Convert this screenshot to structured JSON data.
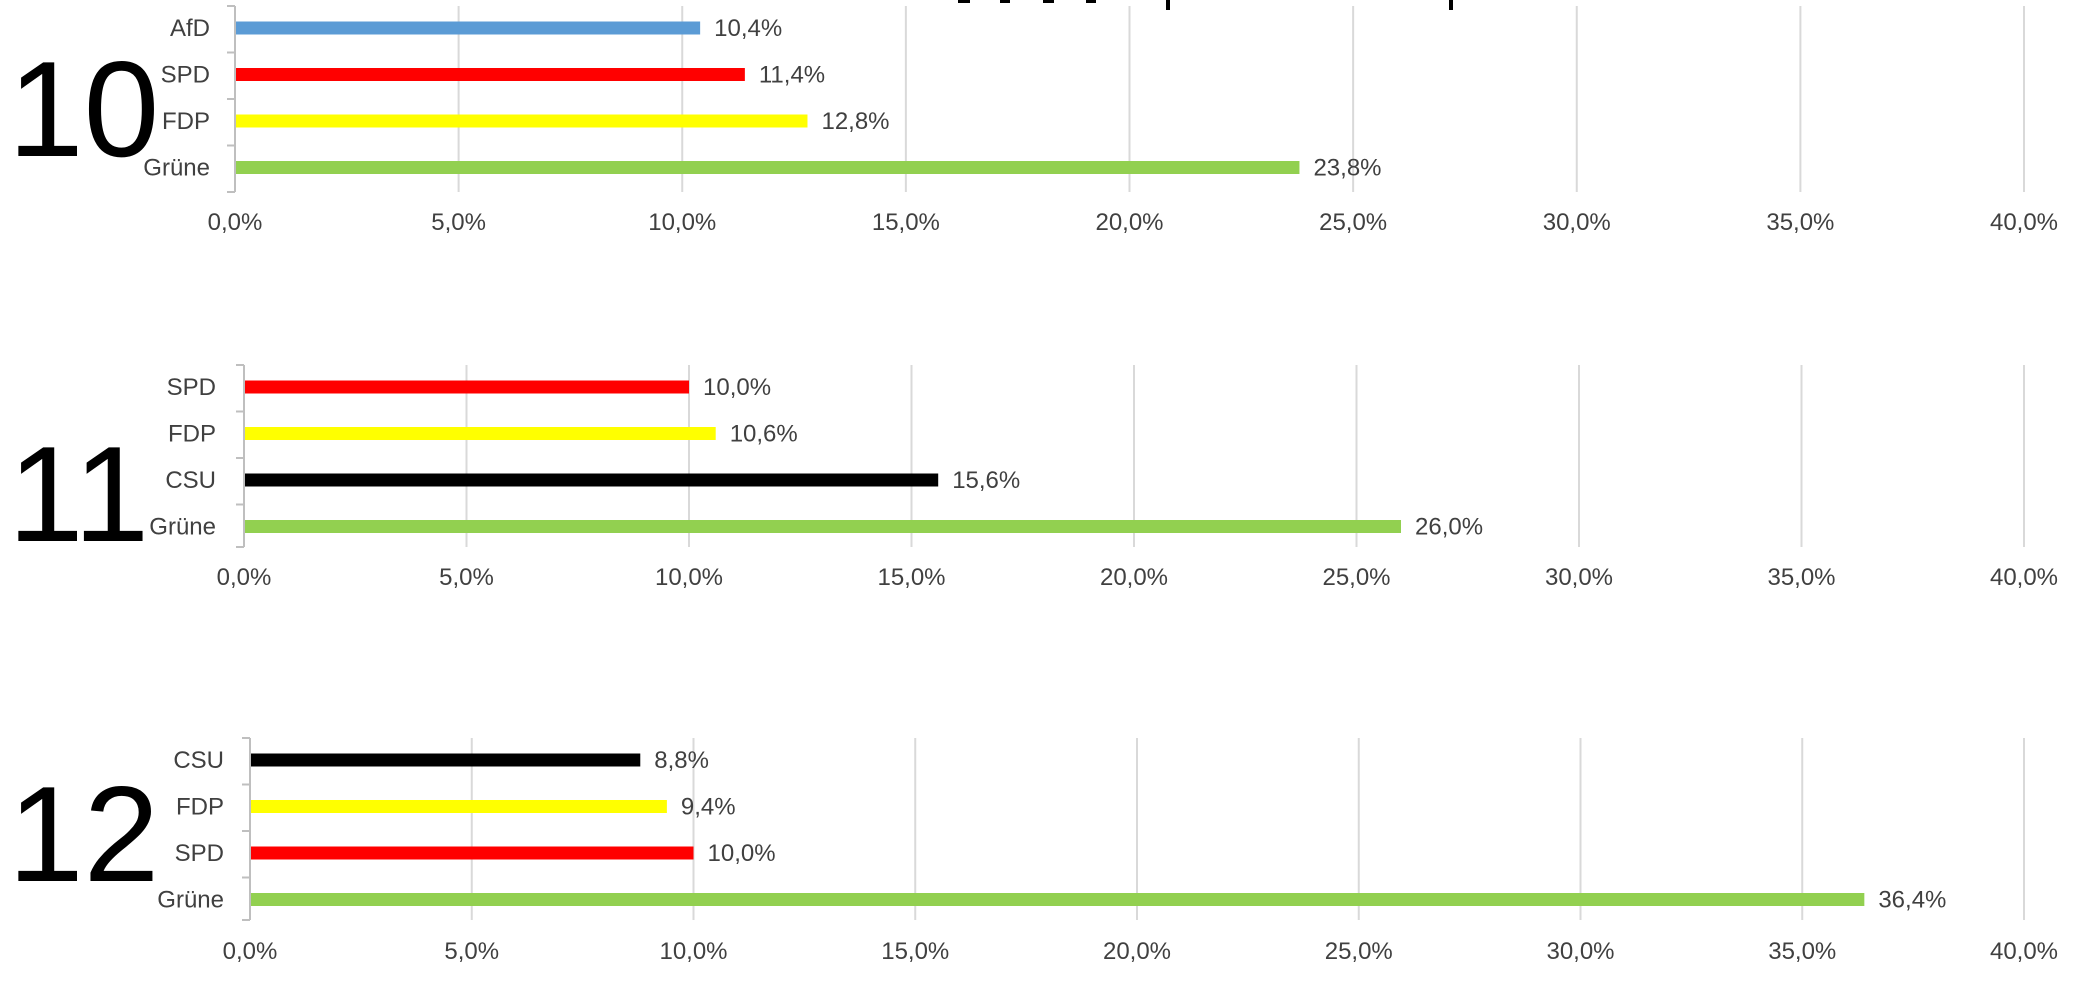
{
  "chart_data": [
    {
      "type": "bar",
      "orientation": "horizontal",
      "panel_label": "10",
      "categories": [
        "AfD",
        "SPD",
        "FDP",
        "Grüne"
      ],
      "values": [
        10.4,
        11.4,
        12.8,
        23.8
      ],
      "value_labels": [
        "10,4%",
        "11,4%",
        "12,8%",
        "23,8%"
      ],
      "colors": [
        "#5b9bd5",
        "#ff0000",
        "#ffff00",
        "#92d050"
      ],
      "xlim": [
        0,
        40
      ],
      "x_ticks": [
        "0,0%",
        "5,0%",
        "10,0%",
        "15,0%",
        "20,0%",
        "25,0%",
        "30,0%",
        "35,0%",
        "40,0%"
      ],
      "grid": true,
      "legend": "none"
    },
    {
      "type": "bar",
      "orientation": "horizontal",
      "panel_label": "11",
      "categories": [
        "SPD",
        "FDP",
        "CSU",
        "Grüne"
      ],
      "values": [
        10.0,
        10.6,
        15.6,
        26.0
      ],
      "value_labels": [
        "10,0%",
        "10,6%",
        "15,6%",
        "26,0%"
      ],
      "colors": [
        "#ff0000",
        "#ffff00",
        "#000000",
        "#92d050"
      ],
      "xlim": [
        0,
        40
      ],
      "x_ticks": [
        "0,0%",
        "5,0%",
        "10,0%",
        "15,0%",
        "20,0%",
        "25,0%",
        "30,0%",
        "35,0%",
        "40,0%"
      ],
      "grid": true,
      "legend": "none"
    },
    {
      "type": "bar",
      "orientation": "horizontal",
      "panel_label": "12",
      "categories": [
        "CSU",
        "FDP",
        "SPD",
        "Grüne"
      ],
      "values": [
        8.8,
        9.4,
        10.0,
        36.4
      ],
      "value_labels": [
        "8,8%",
        "9,4%",
        "10,0%",
        "36,4%"
      ],
      "colors": [
        "#000000",
        "#ffff00",
        "#ff0000",
        "#92d050"
      ],
      "xlim": [
        0,
        40
      ],
      "x_ticks": [
        "0,0%",
        "5,0%",
        "10,0%",
        "15,0%",
        "20,0%",
        "25,0%",
        "30,0%",
        "35,0%",
        "40,0%"
      ],
      "grid": true,
      "legend": "none"
    }
  ]
}
